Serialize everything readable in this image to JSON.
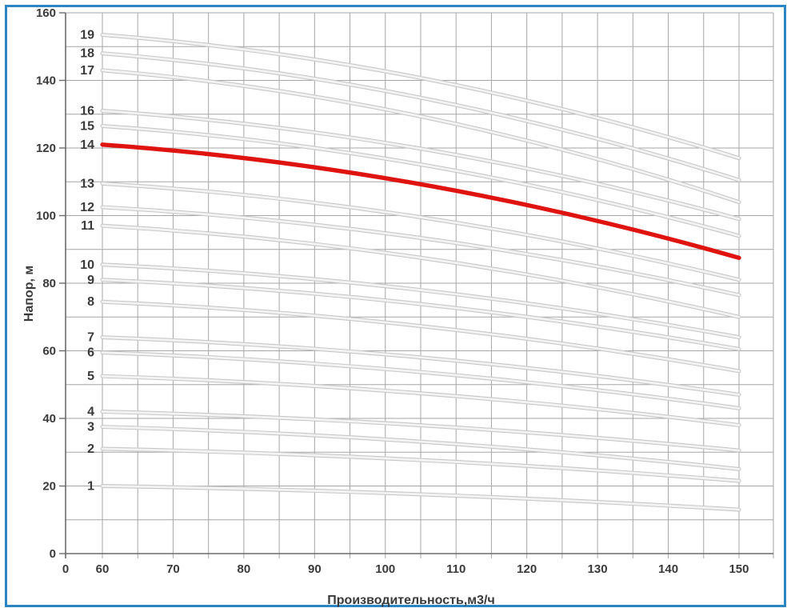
{
  "chart_data": {
    "type": "line",
    "title": "",
    "xlabel": "Производительность,м3/ч",
    "ylabel": "Напор, м",
    "x_ticks": [
      0,
      60,
      70,
      80,
      90,
      100,
      110,
      120,
      130,
      140,
      150
    ],
    "y_ticks": [
      0,
      20,
      40,
      60,
      80,
      100,
      120,
      140,
      160
    ],
    "ylim": [
      0,
      160
    ],
    "x_plot_range": [
      60,
      150
    ],
    "grid": {
      "x_step": 5,
      "y_step": 10,
      "visible": true
    },
    "legend_position": "curve-labels-left-of-curves",
    "series": [
      {
        "name": "1",
        "x": [
          60,
          150
        ],
        "values": [
          20,
          13
        ],
        "highlight": false
      },
      {
        "name": "2",
        "x": [
          60,
          150
        ],
        "values": [
          31,
          21.5
        ],
        "highlight": false
      },
      {
        "name": "3",
        "x": [
          60,
          150
        ],
        "values": [
          37.5,
          25
        ],
        "highlight": false
      },
      {
        "name": "4",
        "x": [
          60,
          150
        ],
        "values": [
          42,
          30.5
        ],
        "highlight": false
      },
      {
        "name": "5",
        "x": [
          60,
          150
        ],
        "values": [
          52.5,
          38
        ],
        "highlight": false
      },
      {
        "name": "6",
        "x": [
          60,
          150
        ],
        "values": [
          59.5,
          43
        ],
        "highlight": false
      },
      {
        "name": "7",
        "x": [
          60,
          150
        ],
        "values": [
          64,
          47
        ],
        "highlight": false
      },
      {
        "name": "8",
        "x": [
          60,
          150
        ],
        "values": [
          74.5,
          54
        ],
        "highlight": false
      },
      {
        "name": "9",
        "x": [
          60,
          150
        ],
        "values": [
          81,
          60.5
        ],
        "highlight": false
      },
      {
        "name": "10",
        "x": [
          60,
          150
        ],
        "values": [
          85.5,
          64
        ],
        "highlight": false
      },
      {
        "name": "11",
        "x": [
          60,
          150
        ],
        "values": [
          97,
          70
        ],
        "highlight": false
      },
      {
        "name": "12",
        "x": [
          60,
          150
        ],
        "values": [
          102.5,
          76.5
        ],
        "highlight": false
      },
      {
        "name": "13",
        "x": [
          60,
          150
        ],
        "values": [
          109.5,
          81
        ],
        "highlight": false
      },
      {
        "name": "14",
        "x": [
          60,
          150
        ],
        "values": [
          121,
          87.5
        ],
        "highlight": true
      },
      {
        "name": "15",
        "x": [
          60,
          150
        ],
        "values": [
          126.5,
          94
        ],
        "highlight": false
      },
      {
        "name": "16",
        "x": [
          60,
          150
        ],
        "values": [
          131,
          99
        ],
        "highlight": false
      },
      {
        "name": "17",
        "x": [
          60,
          150
        ],
        "values": [
          143,
          104
        ],
        "highlight": false
      },
      {
        "name": "18",
        "x": [
          60,
          150
        ],
        "values": [
          148,
          110.5
        ],
        "highlight": false
      },
      {
        "name": "19",
        "x": [
          60,
          150
        ],
        "values": [
          153.5,
          117
        ],
        "highlight": false
      }
    ]
  },
  "colors": {
    "highlight_curve": "#df1411",
    "curve_edge": "#c7c7c7",
    "curve_core": "#f3f3f3",
    "grid": "#a6a6a6",
    "axis": "#6b6b6b",
    "text": "#3a3a3a",
    "frame_border": "#2b85c4",
    "background": "#ffffff"
  }
}
